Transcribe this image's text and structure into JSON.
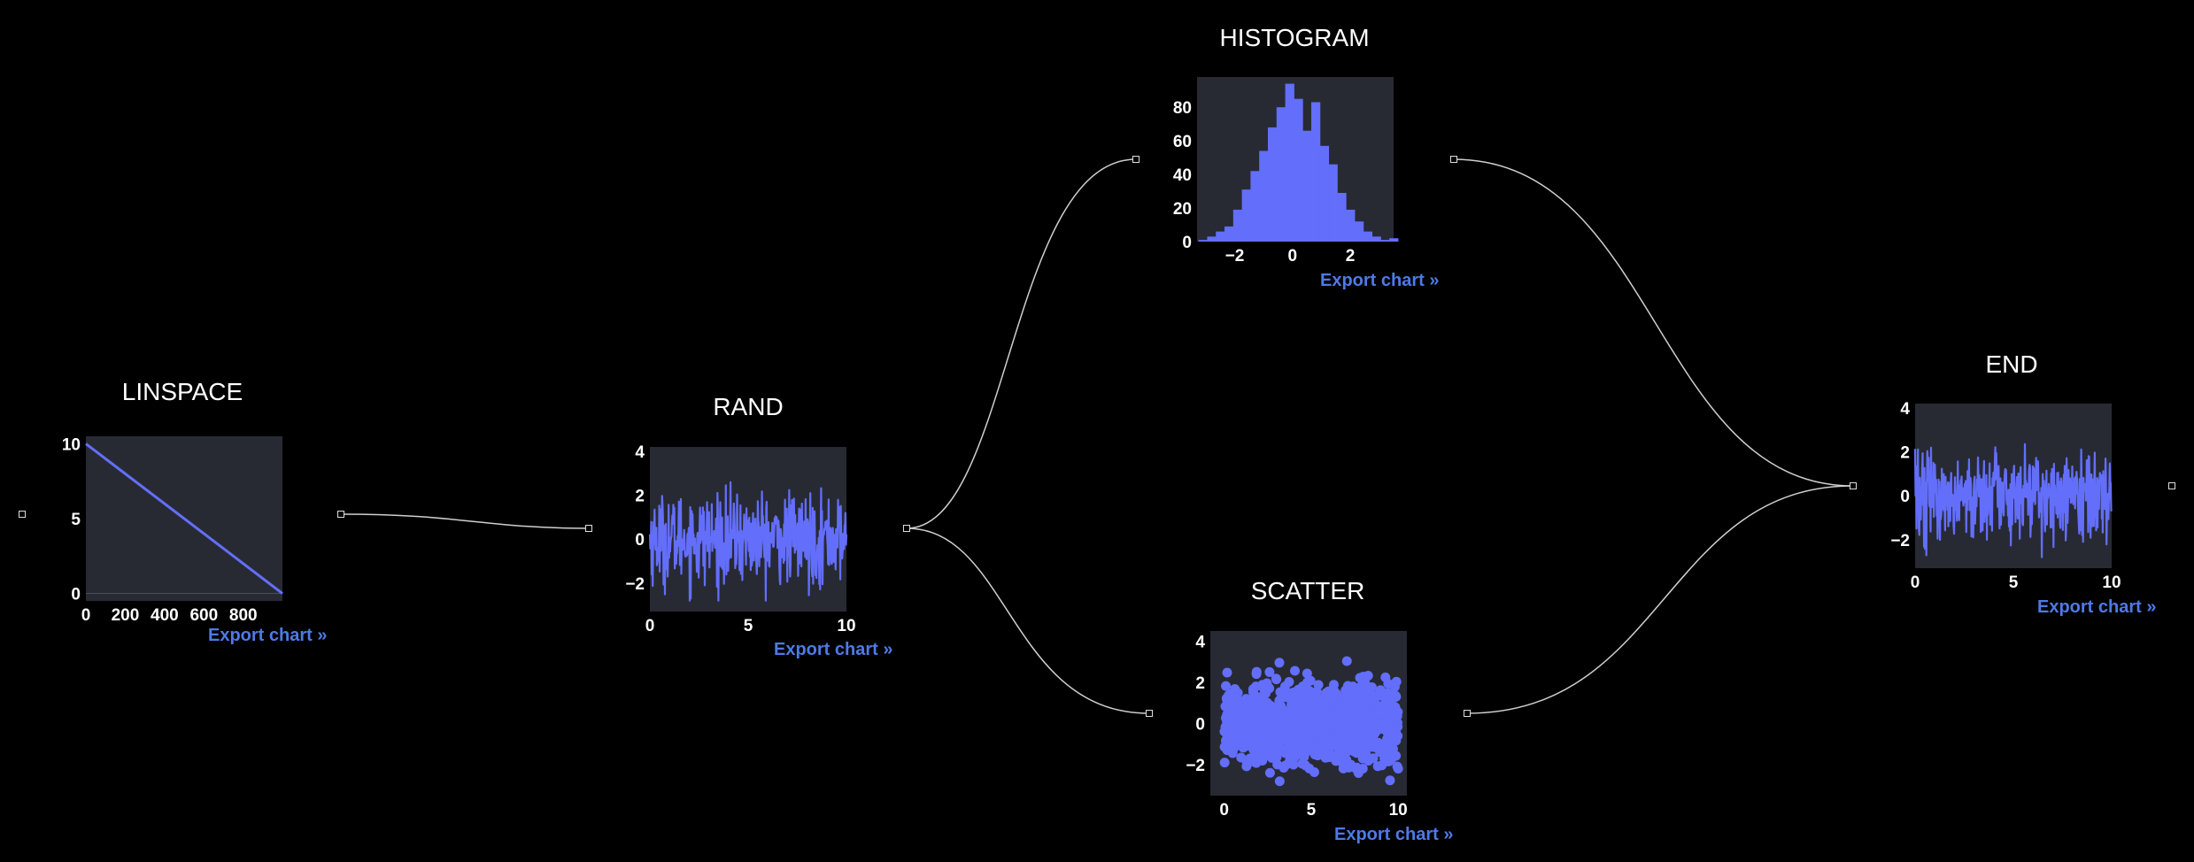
{
  "export_label": "Export chart »",
  "colors": {
    "series": "#636efa",
    "plot_bg": "#272a33",
    "edge": "#cfcfcf",
    "link": "#4e7ae6"
  },
  "nodes": {
    "linspace": {
      "title": "LINSPACE"
    },
    "rand": {
      "title": "RAND"
    },
    "histogram": {
      "title": "HISTOGRAM"
    },
    "scatter": {
      "title": "SCATTER"
    },
    "end": {
      "title": "END"
    }
  },
  "chart_data": [
    {
      "node": "LINSPACE",
      "type": "line",
      "x": [
        0,
        1000
      ],
      "y": [
        10,
        0
      ],
      "xlim": [
        0,
        999
      ],
      "ylim": [
        -0.5,
        10.5
      ],
      "xticks": [
        0,
        200,
        400,
        600,
        800
      ],
      "yticks": [
        0,
        5,
        10
      ]
    },
    {
      "node": "RAND",
      "type": "line",
      "x_range": [
        0,
        10
      ],
      "y_range": [
        -3,
        4
      ],
      "xticks": [
        0,
        5,
        10
      ],
      "yticks": [
        -2,
        0,
        2,
        4
      ],
      "description_values": {
        "mean": 0,
        "approx_min": -2.8,
        "approx_max": 3.7
      }
    },
    {
      "node": "HISTOGRAM",
      "type": "bar",
      "categories": [
        -3.1,
        -2.8,
        -2.5,
        -2.2,
        -1.9,
        -1.6,
        -1.3,
        -1.0,
        -0.7,
        -0.4,
        -0.1,
        0.2,
        0.5,
        0.8,
        1.1,
        1.4,
        1.7,
        2.0,
        2.3,
        2.6,
        2.9,
        3.2,
        3.5
      ],
      "values": [
        1,
        3,
        6,
        9,
        19,
        31,
        42,
        54,
        68,
        80,
        94,
        85,
        66,
        83,
        57,
        46,
        29,
        19,
        12,
        6,
        3,
        1,
        2
      ],
      "xlim": [
        -3.3,
        3.5
      ],
      "ylim": [
        0,
        98
      ],
      "xticks": [
        -2,
        0,
        2
      ],
      "yticks": [
        0,
        20,
        40,
        60,
        80
      ]
    },
    {
      "node": "SCATTER",
      "type": "scatter",
      "x_range": [
        0,
        10
      ],
      "y_range": [
        -3,
        4
      ],
      "xticks": [
        0,
        5,
        10
      ],
      "yticks": [
        -2,
        0,
        2,
        4
      ],
      "description_values": {
        "mean": 0,
        "approx_min": -2.8,
        "approx_max": 3.8
      }
    },
    {
      "node": "END",
      "type": "line",
      "x_range": [
        0,
        10
      ],
      "y_range": [
        -3,
        4
      ],
      "xticks": [
        0,
        5,
        10
      ],
      "yticks": [
        -2,
        0,
        2,
        4
      ],
      "description_values": {
        "mean": 0,
        "approx_min": -2.8,
        "approx_max": 3.8
      }
    }
  ]
}
